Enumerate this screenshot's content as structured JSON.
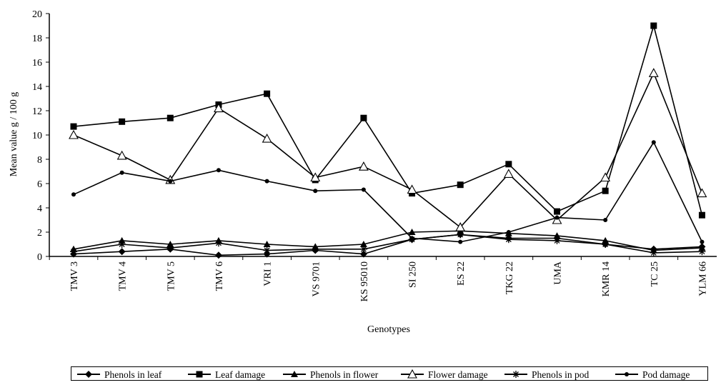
{
  "chart_data": {
    "type": "line",
    "title": "",
    "xlabel": "Genotypes",
    "ylabel": "Mean value g / 100 g",
    "ylim": [
      0,
      20
    ],
    "yticks": [
      0,
      2,
      4,
      6,
      8,
      10,
      12,
      14,
      16,
      18,
      20
    ],
    "grid": false,
    "legend_position": "bottom",
    "categories": [
      "TMV 3",
      "TMV 4",
      "TMV 5",
      "TMV 6",
      "VRI 1",
      "VS 9701",
      "KS 95010",
      "SI 250",
      "ES 22",
      "TKG 22",
      "UMA",
      "KMR 14",
      "TC 25",
      "YLM 66"
    ],
    "series": [
      {
        "name": "Phenols in leaf",
        "marker": "diamond-filled",
        "values": [
          0.2,
          0.4,
          0.6,
          0.1,
          0.2,
          0.5,
          0.2,
          1.4,
          1.8,
          1.5,
          1.5,
          1.0,
          0.6,
          0.8
        ]
      },
      {
        "name": "Leaf damage",
        "marker": "square-filled",
        "values": [
          10.7,
          11.1,
          11.4,
          12.5,
          13.4,
          6.3,
          11.4,
          5.2,
          5.9,
          7.6,
          3.7,
          5.4,
          19.0,
          3.4
        ]
      },
      {
        "name": "Phenols in flower",
        "marker": "triangle-filled",
        "values": [
          0.6,
          1.3,
          1.0,
          1.3,
          1.0,
          0.8,
          1.0,
          2.0,
          2.1,
          1.9,
          1.7,
          1.3,
          0.5,
          0.7
        ]
      },
      {
        "name": "Flower damage",
        "marker": "triangle-open",
        "values": [
          10.0,
          8.3,
          6.3,
          12.2,
          9.7,
          6.5,
          7.4,
          5.5,
          2.4,
          6.8,
          3.0,
          6.5,
          15.1,
          5.2
        ]
      },
      {
        "name": "Phenols in pod",
        "marker": "star",
        "values": [
          0.4,
          1.0,
          0.7,
          1.1,
          0.5,
          0.6,
          0.6,
          1.4,
          1.8,
          1.4,
          1.3,
          1.0,
          0.3,
          0.4
        ]
      },
      {
        "name": "Pod damage",
        "marker": "circle-filled",
        "values": [
          5.1,
          6.9,
          6.2,
          7.1,
          6.2,
          5.4,
          5.5,
          1.5,
          1.2,
          2.0,
          3.2,
          3.0,
          9.4,
          1.2
        ]
      }
    ]
  }
}
